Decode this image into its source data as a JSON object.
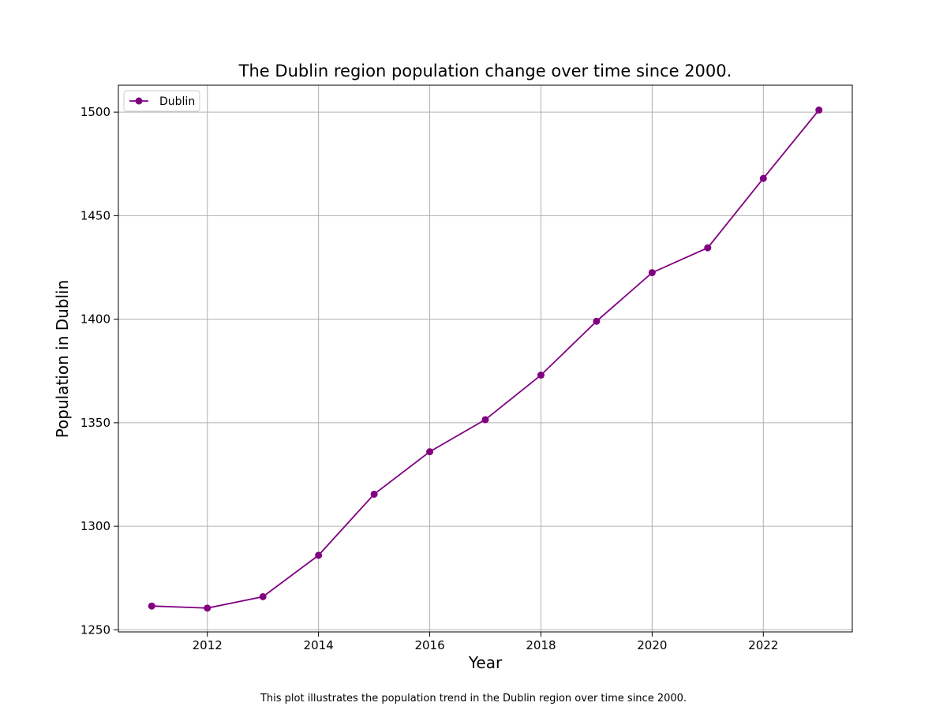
{
  "chart_data": {
    "type": "line",
    "title": "The Dublin region population change over time since 2000.",
    "xlabel": "Year",
    "ylabel": "Population in Dublin",
    "caption": "This plot illustrates the population trend in the Dublin region over time since 2000.",
    "x": [
      2011,
      2012,
      2013,
      2014,
      2015,
      2016,
      2017,
      2018,
      2019,
      2020,
      2021,
      2022,
      2023
    ],
    "series": [
      {
        "name": "Dublin",
        "color": "#800080",
        "marker": "circle",
        "values": [
          1261.5,
          1260.5,
          1266,
          1286,
          1315.5,
          1336,
          1351.5,
          1373,
          1399,
          1422.5,
          1434.5,
          1468,
          1501
        ]
      }
    ],
    "xlim": [
      2010.4,
      2023.6
    ],
    "ylim": [
      1249,
      1513
    ],
    "xticks": [
      "2012",
      "2014",
      "2016",
      "2018",
      "2020",
      "2022"
    ],
    "yticks": [
      "1250",
      "1300",
      "1350",
      "1400",
      "1450",
      "1500"
    ],
    "grid": true,
    "legend_position": "top-left"
  }
}
